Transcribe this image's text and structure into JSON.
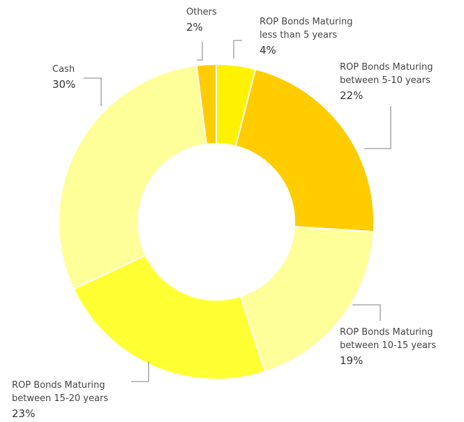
{
  "chart_data": {
    "type": "donut",
    "categories": [
      "ROP Bonds Maturing\nless than 5 years",
      "ROP Bonds Maturing\nbetween 5-10 years",
      "ROP Bonds Maturing\nbetween 10-15 years",
      "ROP Bonds Maturing\nbetween 15-20 years",
      "Cash",
      "Others"
    ],
    "values": [
      4,
      22,
      19,
      23,
      30,
      2
    ],
    "value_labels": [
      "4%",
      "22%",
      "19%",
      "23%",
      "30%",
      "2%"
    ],
    "colors": [
      "#fff200",
      "#ffcc00",
      "#ffff99",
      "#ffff33",
      "#ffff99",
      "#ffcc00"
    ]
  }
}
